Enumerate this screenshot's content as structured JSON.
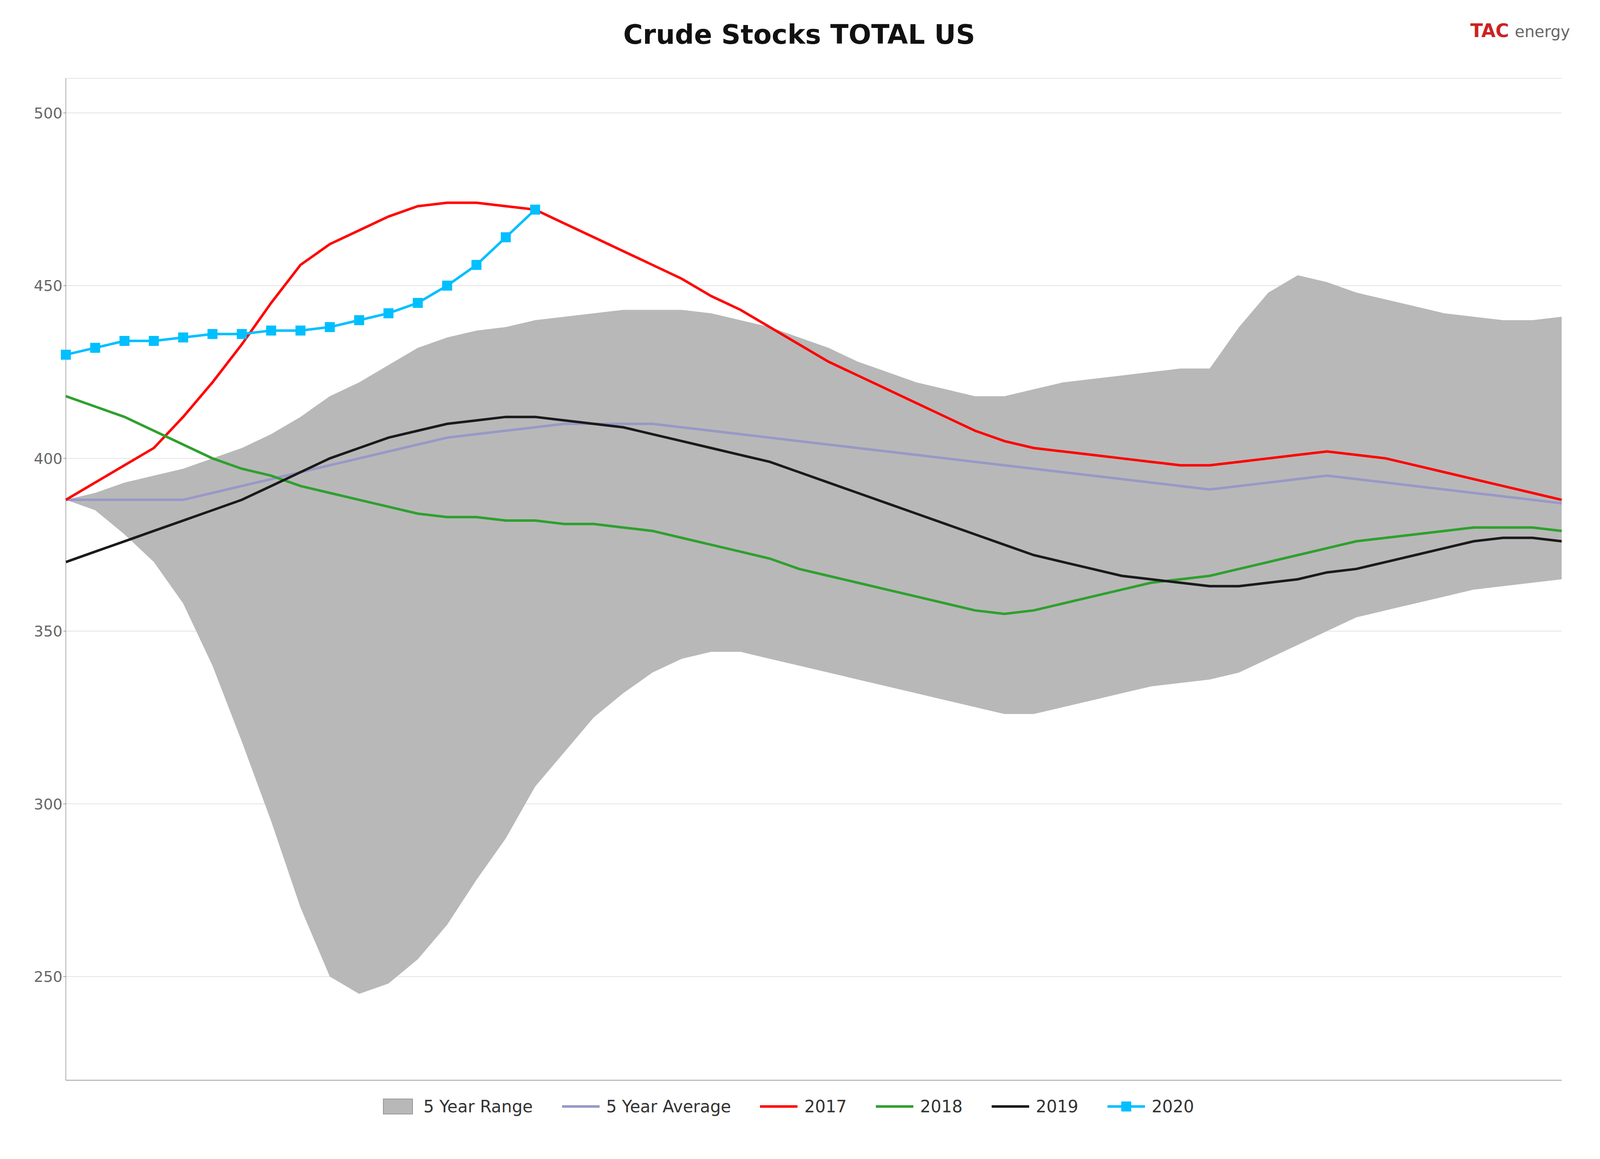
{
  "chart_data": {
    "type": "line",
    "title": "Crude Stocks TOTAL US",
    "annotations": [
      {
        "text": "TAC",
        "color": "#cc2222"
      },
      {
        "text": "energy",
        "color": "#666666"
      }
    ],
    "categories": [
      null,
      null,
      null,
      null,
      null,
      null,
      null,
      null,
      null,
      null,
      null,
      null,
      null,
      null,
      null,
      null,
      null,
      null,
      null,
      null,
      null,
      null,
      null,
      null,
      null,
      null,
      null,
      null,
      null,
      null,
      null,
      null,
      null,
      null,
      null,
      null,
      null,
      null,
      null,
      null,
      null,
      null,
      null,
      null,
      null,
      null,
      null,
      null,
      null,
      null,
      null,
      null
    ],
    "series": [
      {
        "name": "5 Year Range",
        "type": "range",
        "color": "#b8b8b8",
        "low": [
          388,
          385,
          378,
          370,
          358,
          340,
          318,
          295,
          270,
          250,
          245,
          248,
          255,
          265,
          278,
          290,
          305,
          315,
          325,
          332,
          338,
          342,
          344,
          344,
          342,
          340,
          338,
          336,
          334,
          332,
          330,
          328,
          326,
          326,
          328,
          330,
          332,
          334,
          335,
          336,
          338,
          342,
          346,
          350,
          354,
          356,
          358,
          360,
          362,
          363,
          364,
          365
        ],
        "high": [
          388,
          390,
          393,
          395,
          397,
          400,
          403,
          407,
          412,
          418,
          422,
          427,
          432,
          435,
          437,
          438,
          440,
          441,
          442,
          443,
          443,
          443,
          442,
          440,
          438,
          435,
          432,
          428,
          425,
          422,
          420,
          418,
          418,
          420,
          422,
          423,
          424,
          425,
          426,
          426,
          438,
          448,
          453,
          451,
          448,
          446,
          444,
          442,
          441,
          440,
          440,
          441
        ]
      },
      {
        "name": "5 Year Average",
        "type": "line",
        "color": "#9898c8",
        "values": [
          388,
          388,
          388,
          388,
          388,
          390,
          392,
          394,
          396,
          398,
          400,
          402,
          404,
          406,
          407,
          408,
          409,
          410,
          410,
          410,
          410,
          409,
          408,
          407,
          406,
          405,
          404,
          403,
          402,
          401,
          400,
          399,
          398,
          397,
          396,
          395,
          394,
          393,
          392,
          391,
          392,
          393,
          394,
          395,
          394,
          393,
          392,
          391,
          390,
          389,
          388,
          387
        ]
      },
      {
        "name": "2017",
        "type": "line",
        "color": "#ff0000",
        "values": [
          388,
          393,
          398,
          403,
          412,
          422,
          433,
          445,
          456,
          462,
          466,
          470,
          473,
          474,
          474,
          473,
          472,
          468,
          464,
          460,
          456,
          452,
          447,
          443,
          438,
          433,
          428,
          424,
          420,
          416,
          412,
          408,
          405,
          403,
          402,
          401,
          400,
          399,
          398,
          398,
          399,
          400,
          401,
          402,
          401,
          400,
          398,
          396,
          394,
          392,
          390,
          388
        ]
      },
      {
        "name": "2018",
        "type": "line",
        "color": "#2ea02e",
        "values": [
          418,
          415,
          412,
          408,
          404,
          400,
          397,
          395,
          392,
          390,
          388,
          386,
          384,
          383,
          383,
          382,
          382,
          381,
          381,
          380,
          379,
          377,
          375,
          373,
          371,
          368,
          366,
          364,
          362,
          360,
          358,
          356,
          355,
          356,
          358,
          360,
          362,
          364,
          365,
          366,
          368,
          370,
          372,
          374,
          376,
          377,
          378,
          379,
          380,
          380,
          380,
          379
        ]
      },
      {
        "name": "2019",
        "type": "line",
        "color": "#1a1a1a",
        "values": [
          370,
          373,
          376,
          379,
          382,
          385,
          388,
          392,
          396,
          400,
          403,
          406,
          408,
          410,
          411,
          412,
          412,
          411,
          410,
          409,
          407,
          405,
          403,
          401,
          399,
          396,
          393,
          390,
          387,
          384,
          381,
          378,
          375,
          372,
          370,
          368,
          366,
          365,
          364,
          363,
          363,
          364,
          365,
          367,
          368,
          370,
          372,
          374,
          376,
          377,
          377,
          376
        ]
      },
      {
        "name": "2020",
        "type": "line",
        "color": "#00bfff",
        "marker": "square",
        "values": [
          430,
          432,
          434,
          434,
          435,
          436,
          436,
          437,
          437,
          438,
          440,
          442,
          445,
          450,
          456,
          464,
          472,
          null,
          null,
          null,
          null,
          null,
          null,
          null,
          null,
          null,
          null,
          null,
          null,
          null,
          null,
          null,
          null,
          null,
          null,
          null,
          null,
          null,
          null,
          null,
          null,
          null,
          null,
          null,
          null,
          null,
          null,
          null,
          null,
          null,
          null,
          null
        ]
      }
    ],
    "ylim": [
      220,
      510
    ],
    "yticks": [
      250,
      300,
      350,
      400,
      450,
      500
    ],
    "grid": true,
    "legend": "bottom",
    "tick_labels": "y"
  }
}
